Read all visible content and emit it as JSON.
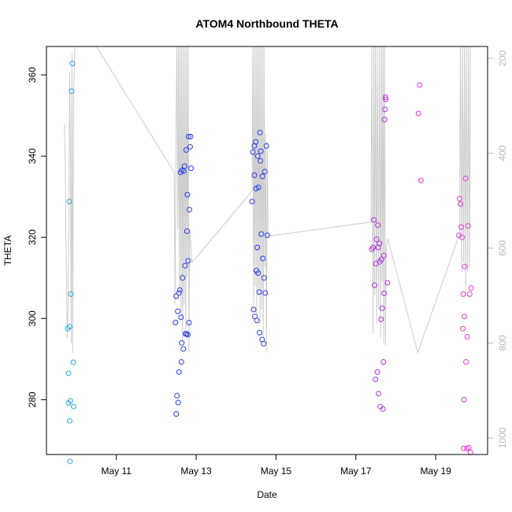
{
  "chart_data": {
    "type": "scatter",
    "title": "ATOM4 Northbound THETA",
    "xlabel": "Date",
    "ylabel": "THETA",
    "x_ticks": [
      "May 11",
      "May 13",
      "May 15",
      "May 17",
      "May 19"
    ],
    "x_tick_days": [
      11,
      13,
      15,
      17,
      19
    ],
    "xlim": [
      9.25,
      20.3
    ],
    "ylim": [
      266.5,
      367
    ],
    "y_ticks": [
      280,
      300,
      320,
      340,
      360
    ],
    "y2_ticks": [
      200,
      400,
      600,
      800,
      1000
    ],
    "y2lim": [
      1035,
      175
    ],
    "colors": {
      "series_1": "#29a8e8",
      "series_2": "#2a3ee8",
      "series_3": "#b232e0",
      "series_4": "#e838dc",
      "line": "#cccccc"
    },
    "series": [
      {
        "color_key": "series_1",
        "points": [
          [
            9.78,
            297.5
          ],
          [
            9.8,
            286.5
          ],
          [
            9.8,
            279.2
          ],
          [
            9.82,
            328.8
          ],
          [
            9.83,
            298.0
          ],
          [
            9.83,
            274.8
          ],
          [
            9.84,
            264.8
          ],
          [
            9.85,
            279.7
          ],
          [
            9.86,
            306.0
          ],
          [
            9.88,
            356.0
          ],
          [
            9.9,
            362.8
          ],
          [
            9.92,
            289.2
          ],
          [
            9.93,
            278.3
          ]
        ]
      },
      {
        "color_key": "series_2",
        "points": [
          [
            12.48,
            299.0
          ],
          [
            12.5,
            305.5
          ],
          [
            12.5,
            276.5
          ],
          [
            12.52,
            281.0
          ],
          [
            12.54,
            301.8
          ],
          [
            12.55,
            279.3
          ],
          [
            12.57,
            286.8
          ],
          [
            12.57,
            306.3
          ],
          [
            12.59,
            307.0
          ],
          [
            12.61,
            336.0
          ],
          [
            12.62,
            300.3
          ],
          [
            12.63,
            289.3
          ],
          [
            12.64,
            294.0
          ],
          [
            12.64,
            336.5
          ],
          [
            12.66,
            310.0
          ],
          [
            12.68,
            292.5
          ],
          [
            12.69,
            336.3
          ],
          [
            12.71,
            337.5
          ],
          [
            12.72,
            313.0
          ],
          [
            12.73,
            296.2
          ],
          [
            12.75,
            341.5
          ],
          [
            12.76,
            296.2
          ],
          [
            12.77,
            321.5
          ],
          [
            12.78,
            330.5
          ],
          [
            12.79,
            296.0
          ],
          [
            12.8,
            314.2
          ],
          [
            12.81,
            344.8
          ],
          [
            12.82,
            299.0
          ],
          [
            12.83,
            326.8
          ],
          [
            12.85,
            342.3
          ],
          [
            12.86,
            344.8
          ],
          [
            12.87,
            337.0
          ]
        ]
      },
      {
        "color_key": "series_2",
        "points": [
          [
            14.4,
            328.8
          ],
          [
            14.42,
            341.0
          ],
          [
            14.44,
            302.2
          ],
          [
            14.46,
            342.5
          ],
          [
            14.46,
            335.3
          ],
          [
            14.47,
            300.5
          ],
          [
            14.49,
            343.5
          ],
          [
            14.5,
            332.0
          ],
          [
            14.51,
            311.8
          ],
          [
            14.52,
            299.5
          ],
          [
            14.53,
            317.5
          ],
          [
            14.54,
            340.0
          ],
          [
            14.55,
            311.2
          ],
          [
            14.56,
            332.3
          ],
          [
            14.58,
            306.5
          ],
          [
            14.59,
            296.5
          ],
          [
            14.6,
            345.8
          ],
          [
            14.61,
            338.8
          ],
          [
            14.62,
            341.2
          ],
          [
            14.63,
            320.8
          ],
          [
            14.65,
            294.8
          ],
          [
            14.66,
            335.0
          ],
          [
            14.67,
            314.8
          ],
          [
            14.69,
            293.8
          ],
          [
            14.7,
            310.0
          ],
          [
            14.72,
            336.2
          ],
          [
            14.73,
            306.3
          ],
          [
            14.76,
            342.5
          ],
          [
            14.78,
            320.5
          ]
        ]
      },
      {
        "color_key": "series_3",
        "points": [
          [
            17.4,
            317.0
          ],
          [
            17.43,
            317.5
          ],
          [
            17.45,
            324.3
          ],
          [
            17.47,
            308.2
          ],
          [
            17.49,
            285.0
          ],
          [
            17.5,
            313.5
          ],
          [
            17.52,
            319.5
          ],
          [
            17.54,
            286.8
          ],
          [
            17.55,
            323.0
          ],
          [
            17.56,
            317.5
          ],
          [
            17.57,
            281.5
          ],
          [
            17.59,
            318.5
          ],
          [
            17.6,
            314.0
          ],
          [
            17.61,
            278.3
          ],
          [
            17.63,
            299.8
          ],
          [
            17.64,
            314.5
          ],
          [
            17.66,
            302.5
          ],
          [
            17.68,
            277.7
          ],
          [
            17.69,
            289.3
          ],
          [
            17.7,
            315.5
          ],
          [
            17.71,
            306.2
          ],
          [
            17.72,
            349.0
          ],
          [
            17.73,
            351.5
          ],
          [
            17.74,
            354.5
          ],
          [
            17.75,
            354.0
          ],
          [
            17.79,
            308.8
          ]
        ]
      },
      {
        "color_key": "series_4",
        "points": [
          [
            18.57,
            350.5
          ],
          [
            18.6,
            357.5
          ],
          [
            18.63,
            334.0
          ],
          [
            19.58,
            320.5
          ],
          [
            19.6,
            329.5
          ],
          [
            19.62,
            328.2
          ],
          [
            19.64,
            322.5
          ],
          [
            19.66,
            320.0
          ],
          [
            19.68,
            297.5
          ],
          [
            19.69,
            306.0
          ],
          [
            19.7,
            268.0
          ],
          [
            19.71,
            280.0
          ],
          [
            19.72,
            300.5
          ],
          [
            19.73,
            312.8
          ],
          [
            19.75,
            334.5
          ],
          [
            19.76,
            289.3
          ],
          [
            19.78,
            268.0
          ],
          [
            19.79,
            295.5
          ],
          [
            19.81,
            322.8
          ],
          [
            19.83,
            268.2
          ],
          [
            19.85,
            306.0
          ],
          [
            19.87,
            267.0
          ],
          [
            19.89,
            307.5
          ]
        ]
      }
    ],
    "line_series": {
      "axis": "right",
      "points": [
        [
          9.7,
          338
        ],
        [
          9.72,
          412
        ],
        [
          9.74,
          595
        ],
        [
          9.77,
          790
        ],
        [
          9.79,
          720
        ],
        [
          9.81,
          530
        ],
        [
          9.83,
          230
        ],
        [
          9.85,
          400
        ],
        [
          9.87,
          800
        ],
        [
          9.89,
          190
        ],
        [
          9.91,
          820
        ],
        [
          9.93,
          280
        ],
        [
          9.96,
          170
        ],
        [
          10.5,
          160
        ],
        [
          12.45,
          440
        ],
        [
          12.47,
          720
        ],
        [
          12.5,
          310
        ],
        [
          12.52,
          170
        ],
        [
          12.54,
          560
        ],
        [
          12.56,
          170
        ],
        [
          12.58,
          690
        ],
        [
          12.6,
          170
        ],
        [
          12.62,
          750
        ],
        [
          12.64,
          170
        ],
        [
          12.66,
          800
        ],
        [
          12.68,
          170
        ],
        [
          12.7,
          720
        ],
        [
          12.72,
          170
        ],
        [
          12.74,
          780
        ],
        [
          12.76,
          170
        ],
        [
          12.78,
          660
        ],
        [
          12.8,
          170
        ],
        [
          12.82,
          820
        ],
        [
          12.84,
          560
        ],
        [
          12.9,
          630
        ],
        [
          14.4,
          480
        ],
        [
          14.42,
          170
        ],
        [
          14.44,
          730
        ],
        [
          14.46,
          170
        ],
        [
          14.48,
          680
        ],
        [
          14.5,
          170
        ],
        [
          14.52,
          740
        ],
        [
          14.54,
          170
        ],
        [
          14.56,
          700
        ],
        [
          14.58,
          170
        ],
        [
          14.6,
          760
        ],
        [
          14.62,
          170
        ],
        [
          14.64,
          730
        ],
        [
          14.66,
          170
        ],
        [
          14.68,
          790
        ],
        [
          14.7,
          170
        ],
        [
          14.72,
          640
        ],
        [
          14.74,
          360
        ],
        [
          14.76,
          820
        ],
        [
          14.78,
          375
        ],
        [
          14.8,
          575
        ],
        [
          17.38,
          545
        ],
        [
          17.4,
          170
        ],
        [
          17.43,
          780
        ],
        [
          17.45,
          170
        ],
        [
          17.47,
          700
        ],
        [
          17.49,
          170
        ],
        [
          17.52,
          760
        ],
        [
          17.54,
          170
        ],
        [
          17.57,
          730
        ],
        [
          17.59,
          170
        ],
        [
          17.62,
          790
        ],
        [
          17.64,
          170
        ],
        [
          17.66,
          670
        ],
        [
          17.68,
          170
        ],
        [
          17.7,
          800
        ],
        [
          17.72,
          170
        ],
        [
          17.74,
          805
        ],
        [
          17.76,
          600
        ],
        [
          17.8,
          580
        ],
        [
          18.55,
          820
        ],
        [
          19.6,
          570
        ],
        [
          19.62,
          170
        ],
        [
          19.65,
          650
        ],
        [
          19.67,
          170
        ],
        [
          19.7,
          630
        ],
        [
          19.72,
          170
        ],
        [
          19.75,
          690
        ],
        [
          19.77,
          170
        ],
        [
          19.8,
          650
        ],
        [
          19.82,
          170
        ],
        [
          19.85,
          640
        ],
        [
          19.87,
          170
        ]
      ]
    }
  }
}
